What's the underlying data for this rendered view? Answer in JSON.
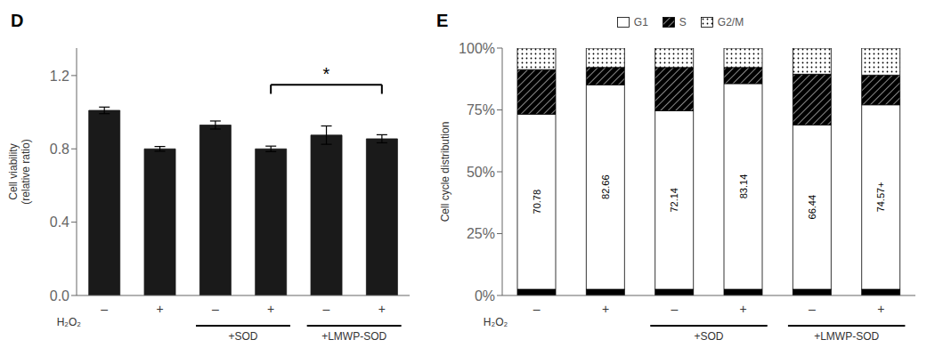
{
  "chart_data": [
    {
      "type": "bar",
      "title": "D",
      "categories": [
        "–",
        "+",
        "–",
        "+",
        "–",
        "+"
      ],
      "xlabel": "H₂O₂",
      "ylabel": "Cell viability\n(relative ratio)",
      "values": [
        1.01,
        0.8,
        0.93,
        0.8,
        0.875,
        0.855
      ],
      "errors": [
        0.018,
        0.013,
        0.022,
        0.015,
        0.05,
        0.022
      ],
      "color": "#1a1a1a",
      "ylim": [
        0,
        1.35
      ],
      "yticks": [
        {
          "value": 0,
          "label": "0.0"
        },
        0.4,
        0.8,
        1.2
      ],
      "grid": false,
      "annotations": [
        {
          "text": "*",
          "y": 1.15,
          "between": [
            3,
            5
          ]
        }
      ],
      "groups": [
        {
          "text": "+SOD",
          "categories": [
            2,
            3
          ]
        },
        {
          "text": "+LMWP-SOD",
          "categories": [
            4,
            5
          ]
        }
      ]
    },
    {
      "type": "bar",
      "title": "E",
      "stacked": true,
      "categories": [
        "–",
        "+",
        "–",
        "+",
        "–",
        "+"
      ],
      "xlabel": "H₂O₂",
      "ylabel": "Cell cycle distribution",
      "series": [
        {
          "color": "#000000",
          "values": [
            2.5,
            2.5,
            2.5,
            2.5,
            2.5,
            2.5
          ]
        },
        {
          "name": "G1",
          "color": "#ffffff",
          "values": [
            70.78,
            82.66,
            72.14,
            83.14,
            66.44,
            74.57
          ],
          "data_labels": true,
          "value_labels": [
            "70.78",
            "82.66",
            "72.14",
            "83.14",
            "66.44",
            "74.57+"
          ]
        },
        {
          "name": "S",
          "color": "#000000",
          "values": [
            18.0,
            7.0,
            17.5,
            6.5,
            20.5,
            12.0
          ]
        },
        {
          "name": "G2/M",
          "color": "#ffffff",
          "values": [
            8.72,
            7.84,
            7.86,
            7.86,
            10.56,
            10.93
          ]
        }
      ],
      "ylim": [
        0,
        100
      ],
      "yticks": [
        {
          "value": 0,
          "label": "0%"
        },
        {
          "value": 25,
          "label": "25%"
        },
        {
          "value": 50,
          "label": "50%"
        },
        {
          "value": 75,
          "label": "75%"
        },
        {
          "value": 100,
          "label": "100%"
        }
      ],
      "grid": false,
      "legend": "top",
      "groups": [
        {
          "text": "+SOD",
          "categories": [
            2,
            3
          ]
        },
        {
          "text": "+LMWP-SOD",
          "categories": [
            4,
            5
          ]
        }
      ]
    }
  ]
}
